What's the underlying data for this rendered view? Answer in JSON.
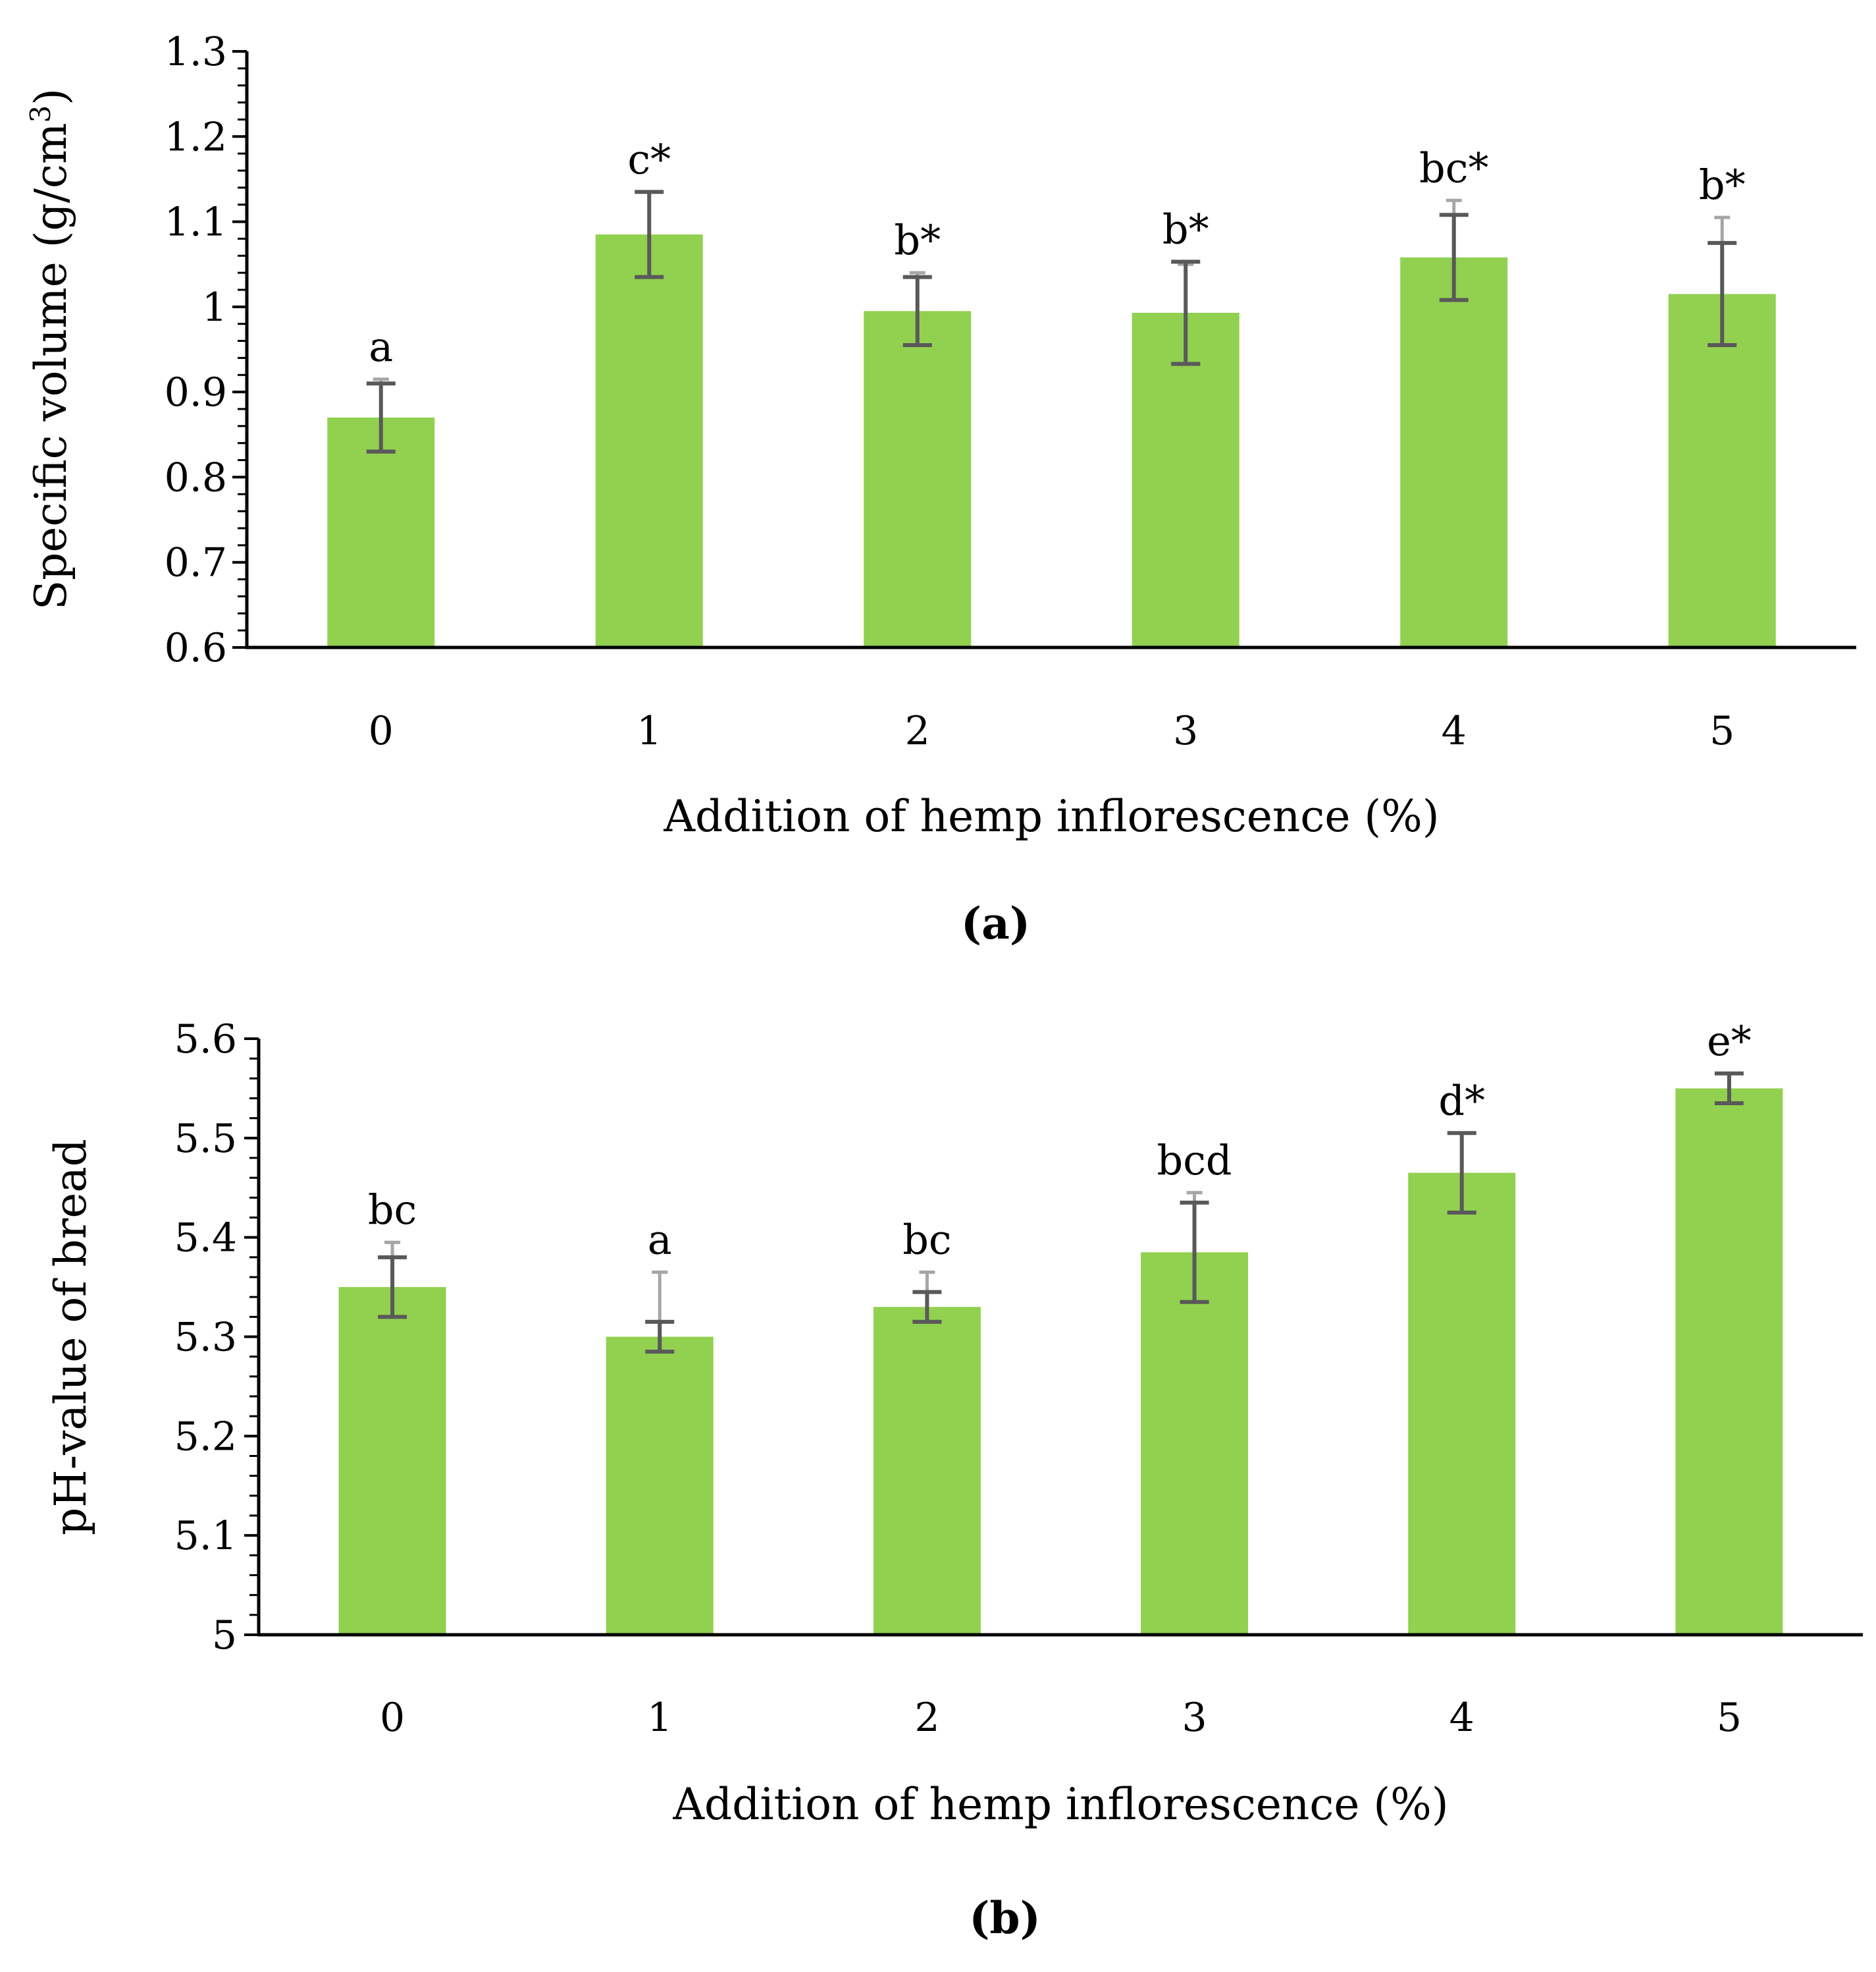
{
  "colors": {
    "bar": "#92d050",
    "axis": "#000000",
    "error_bar_dark": "#595959",
    "error_bar_light": "#a6a6a6"
  },
  "chart_data": [
    {
      "id": "a",
      "type": "bar",
      "panel_label": "(a)",
      "categories": [
        "0",
        "1",
        "2",
        "3",
        "4",
        "5"
      ],
      "values": [
        0.87,
        1.085,
        0.995,
        0.993,
        1.058,
        1.015
      ],
      "errors": [
        0.04,
        0.05,
        0.04,
        0.06,
        0.05,
        0.06
      ],
      "error_bar_light_tops": [
        0.915,
        1.135,
        1.04,
        1.05,
        1.125,
        1.105
      ],
      "significance_labels": [
        "a",
        "c*",
        "b*",
        "b*",
        "bc*",
        "b*"
      ],
      "xlabel": "Addition of hemp inflorescence (%)",
      "ylabel": "Specific volume (g/cm",
      "ylabel_superscript": "3",
      "ylabel_suffix": ")",
      "ylim": [
        0.6,
        1.3
      ],
      "yticks": [
        0.6,
        0.7,
        0.8,
        0.9,
        1.0,
        1.1,
        1.2,
        1.3
      ],
      "ytick_labels": [
        "0.6",
        "0.7",
        "0.8",
        "0.9",
        "1",
        "1.1",
        "1.2",
        "1.3"
      ],
      "grid": false
    },
    {
      "id": "b",
      "type": "bar",
      "panel_label": "(b)",
      "categories": [
        "0",
        "1",
        "2",
        "3",
        "4",
        "5"
      ],
      "values": [
        5.35,
        5.3,
        5.33,
        5.385,
        5.465,
        5.55
      ],
      "errors": [
        0.03,
        0.015,
        0.015,
        0.05,
        0.04,
        0.015
      ],
      "error_bar_light_tops": [
        5.395,
        5.365,
        5.365,
        5.445,
        5.505,
        5.565
      ],
      "significance_labels": [
        "bc",
        "a",
        "bc",
        "bcd",
        "d*",
        "e*"
      ],
      "xlabel": "Addition of hemp inflorescence (%)",
      "ylabel": "pH-value of bread",
      "ylim": [
        5.0,
        5.6
      ],
      "yticks": [
        5.0,
        5.1,
        5.2,
        5.3,
        5.4,
        5.5,
        5.6
      ],
      "ytick_labels": [
        "5",
        "5.1",
        "5.2",
        "5.3",
        "5.4",
        "5.5",
        "5.6"
      ],
      "grid": false
    }
  ]
}
